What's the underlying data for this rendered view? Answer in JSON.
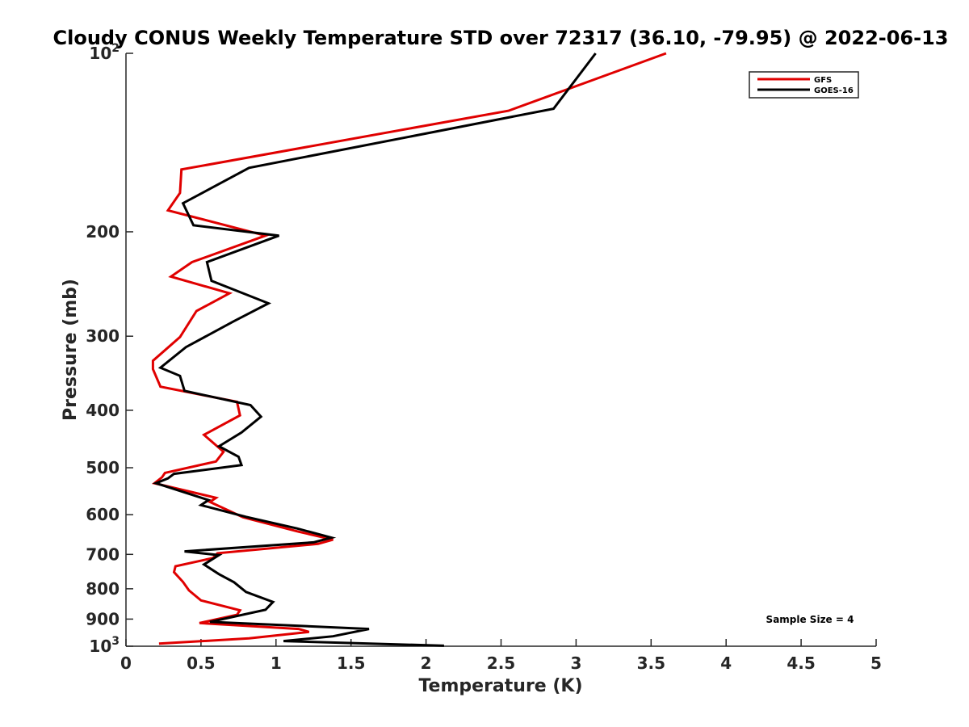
{
  "chart_data": {
    "type": "line",
    "title": "Cloudy CONUS Weekly Temperature STD over 72317 (36.10, -79.95) @ 2022-06-13",
    "xlabel": "Temperature (K)",
    "ylabel": "Pressure (mb)",
    "xlim": [
      0,
      5
    ],
    "ylim": [
      100,
      1000
    ],
    "y_scale": "log",
    "y_reversed": true,
    "x_ticks": [
      "0",
      "0.5",
      "1",
      "1.5",
      "2",
      "2.5",
      "3",
      "3.5",
      "4",
      "4.5",
      "5"
    ],
    "y_ticks": [
      {
        "value": 100,
        "label": "10",
        "sup": "2"
      },
      {
        "value": 200,
        "label": "200",
        "sup": ""
      },
      {
        "value": 300,
        "label": "300",
        "sup": ""
      },
      {
        "value": 400,
        "label": "400",
        "sup": ""
      },
      {
        "value": 500,
        "label": "500",
        "sup": ""
      },
      {
        "value": 600,
        "label": "600",
        "sup": ""
      },
      {
        "value": 700,
        "label": "700",
        "sup": ""
      },
      {
        "value": 800,
        "label": "800",
        "sup": ""
      },
      {
        "value": 900,
        "label": "900",
        "sup": ""
      },
      {
        "value": 1000,
        "label": "10",
        "sup": "3"
      }
    ],
    "grid": false,
    "legend_position": "top-right",
    "annotation": "Sample Size = 4",
    "series": [
      {
        "name": "GFS",
        "color": "#e00000",
        "points": [
          [
            3.6,
            100
          ],
          [
            2.55,
            125
          ],
          [
            0.37,
            157
          ],
          [
            0.36,
            172
          ],
          [
            0.28,
            184
          ],
          [
            0.93,
            203
          ],
          [
            0.44,
            225
          ],
          [
            0.3,
            238
          ],
          [
            0.69,
            254
          ],
          [
            0.47,
            272
          ],
          [
            0.36,
            301
          ],
          [
            0.18,
            330
          ],
          [
            0.18,
            341
          ],
          [
            0.23,
            365
          ],
          [
            0.74,
            387
          ],
          [
            0.76,
            408
          ],
          [
            0.52,
            440
          ],
          [
            0.65,
            470
          ],
          [
            0.6,
            488
          ],
          [
            0.26,
            510
          ],
          [
            0.24,
            519
          ],
          [
            0.19,
            531
          ],
          [
            0.6,
            562
          ],
          [
            0.56,
            571
          ],
          [
            0.78,
            606
          ],
          [
            1.15,
            641
          ],
          [
            1.38,
            661
          ],
          [
            1.28,
            672
          ],
          [
            0.61,
            697
          ],
          [
            0.58,
            710
          ],
          [
            0.33,
            733
          ],
          [
            0.32,
            750
          ],
          [
            0.38,
            779
          ],
          [
            0.42,
            805
          ],
          [
            0.5,
            837
          ],
          [
            0.76,
            870
          ],
          [
            0.74,
            885
          ],
          [
            0.49,
            914
          ],
          [
            1.15,
            935
          ],
          [
            1.22,
            946
          ],
          [
            0.82,
            970
          ],
          [
            0.22,
            990
          ]
        ]
      },
      {
        "name": "GOES-16",
        "color": "#000000",
        "points": [
          [
            3.13,
            100
          ],
          [
            2.85,
            124
          ],
          [
            0.82,
            156
          ],
          [
            0.38,
            179
          ],
          [
            0.45,
            195
          ],
          [
            1.02,
            203
          ],
          [
            0.54,
            225
          ],
          [
            0.57,
            242
          ],
          [
            0.95,
            264
          ],
          [
            0.72,
            283
          ],
          [
            0.4,
            313
          ],
          [
            0.23,
            339
          ],
          [
            0.36,
            350
          ],
          [
            0.39,
            371
          ],
          [
            0.83,
            392
          ],
          [
            0.9,
            410
          ],
          [
            0.77,
            436
          ],
          [
            0.62,
            460
          ],
          [
            0.75,
            479
          ],
          [
            0.77,
            495
          ],
          [
            0.32,
            512
          ],
          [
            0.28,
            521
          ],
          [
            0.2,
            531
          ],
          [
            0.55,
            567
          ],
          [
            0.5,
            578
          ],
          [
            0.8,
            605
          ],
          [
            1.14,
            633
          ],
          [
            1.37,
            656
          ],
          [
            1.25,
            668
          ],
          [
            0.39,
            692
          ],
          [
            0.62,
            702
          ],
          [
            0.52,
            728
          ],
          [
            0.62,
            756
          ],
          [
            0.72,
            780
          ],
          [
            0.8,
            810
          ],
          [
            0.98,
            842
          ],
          [
            0.93,
            868
          ],
          [
            0.56,
            910
          ],
          [
            1.62,
            935
          ],
          [
            1.38,
            962
          ],
          [
            1.05,
            980
          ],
          [
            2.12,
            998
          ]
        ]
      }
    ]
  }
}
